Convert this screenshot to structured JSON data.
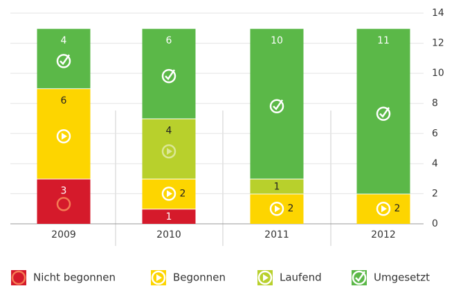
{
  "chart_data": {
    "type": "stacked_bar",
    "categories": [
      "2009",
      "2010",
      "2011",
      "2012"
    ],
    "series": [
      {
        "name": "Nicht begonnen",
        "color": "#d51a2b",
        "icon": "circle",
        "values": [
          3,
          1,
          0,
          0
        ]
      },
      {
        "name": "Begonnen",
        "color": "#fdd500",
        "icon": "play",
        "values": [
          6,
          2,
          2,
          2
        ]
      },
      {
        "name": "Laufend",
        "color": "#b8d02c",
        "icon": "play",
        "values": [
          0,
          4,
          1,
          0
        ]
      },
      {
        "name": "Umgesetzt",
        "color": "#5bb848",
        "icon": "check",
        "values": [
          4,
          6,
          10,
          11
        ]
      }
    ],
    "ylim": [
      0,
      14
    ],
    "yticks": [
      0,
      2,
      4,
      6,
      8,
      10,
      12,
      14
    ],
    "grid": true,
    "legend": "bottom"
  }
}
